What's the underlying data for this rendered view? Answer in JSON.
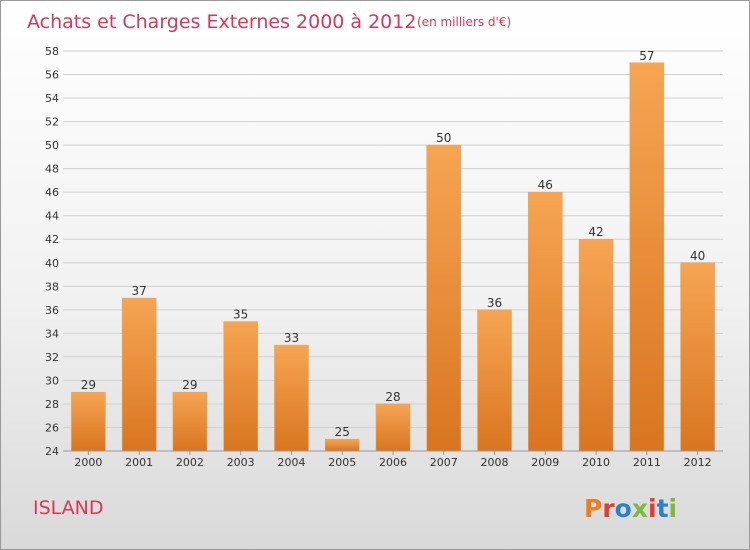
{
  "header": {
    "title": "Achats et Charges Externes 2000 à 2012",
    "subtitle": "(en milliers d'€)"
  },
  "place_name": "ISLAND",
  "logo": {
    "text": "Proxiti",
    "colors": [
      "#ee7d1a",
      "#e8392c",
      "#2a83c6",
      "#7fb83d",
      "#e8392c",
      "#2a83c6",
      "#7fb83d"
    ]
  },
  "colors": {
    "accent": "#d9365c",
    "bar_top": "#f6a553",
    "bar_bottom": "#d97520",
    "grid": "#d0d0d0"
  },
  "chart_data": {
    "type": "bar",
    "title": "Achats et Charges Externes 2000 à 2012",
    "subtitle": "(en milliers d'€)",
    "categories": [
      "2000",
      "2001",
      "2002",
      "2003",
      "2004",
      "2005",
      "2006",
      "2007",
      "2008",
      "2009",
      "2010",
      "2011",
      "2012"
    ],
    "values": [
      29,
      37,
      29,
      35,
      33,
      25,
      28,
      50,
      36,
      46,
      42,
      57,
      40
    ],
    "ylim": [
      24,
      58
    ],
    "yticks": [
      24,
      26,
      28,
      30,
      32,
      34,
      36,
      38,
      40,
      42,
      44,
      46,
      48,
      50,
      52,
      54,
      56,
      58
    ],
    "grid": true,
    "data_labels": true,
    "legend": "none"
  }
}
